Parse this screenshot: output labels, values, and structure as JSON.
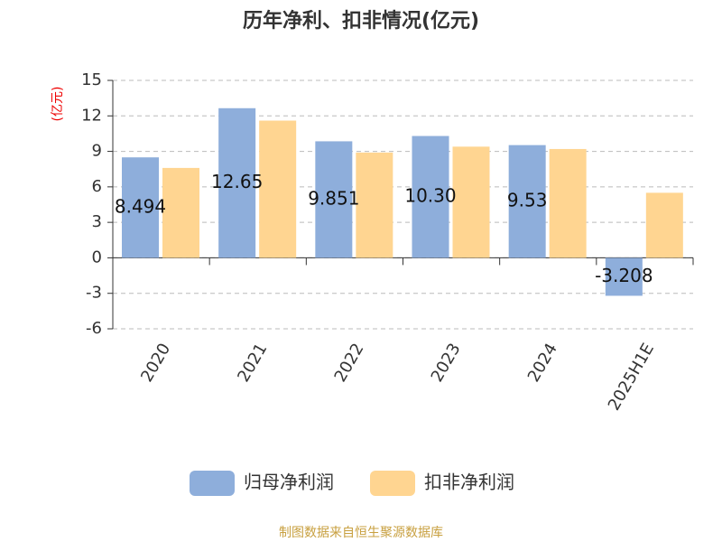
{
  "chart_data": {
    "type": "bar",
    "title": "历年净利、扣非情况(亿元)",
    "y_label": "(亿元)",
    "categories": [
      "2020",
      "2021",
      "2022",
      "2023",
      "2024",
      "2025H1E"
    ],
    "series": [
      {
        "name": "归母净利润",
        "color": "#8eaedb",
        "values": [
          8.494,
          12.65,
          9.851,
          10.3,
          9.53,
          -3.208
        ],
        "value_labels": [
          "8.494",
          "12.65",
          "9.851",
          "10.30",
          "9.53",
          "-3.208"
        ]
      },
      {
        "name": "扣非净利润",
        "color": "#ffd591",
        "values": [
          7.6,
          11.6,
          8.9,
          9.4,
          9.2,
          5.5
        ]
      }
    ],
    "ylim": [
      -6,
      15
    ],
    "yticks": [
      -6,
      -3,
      0,
      3,
      6,
      9,
      12,
      15
    ],
    "grid": true,
    "source": "制图数据来自恒生聚源数据库"
  }
}
